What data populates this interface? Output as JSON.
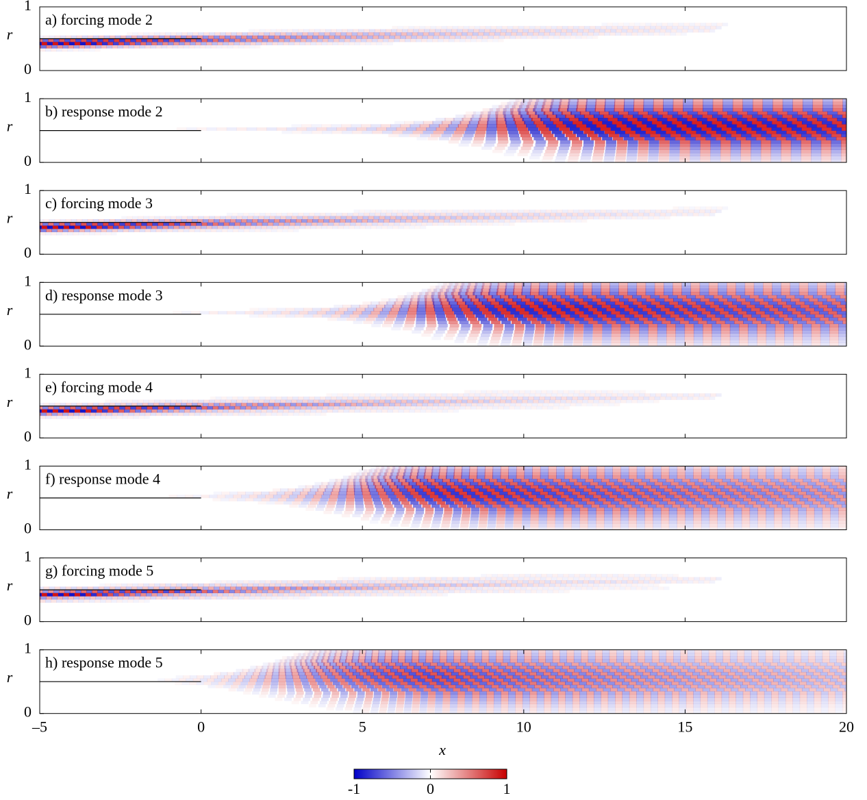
{
  "x_axis": {
    "label": "x",
    "lim": [
      -5,
      20
    ],
    "ticks": [
      {
        "value": -5,
        "label": "–5"
      },
      0,
      5,
      10,
      15,
      20
    ]
  },
  "chart_data": [
    {
      "type": "field",
      "title": "a) forcing mode 2",
      "ylabel": "r",
      "ylim": [
        0,
        1
      ],
      "yticks": [
        0,
        1
      ]
    },
    {
      "type": "field",
      "title": "b) response mode 2",
      "ylabel": "r",
      "ylim": [
        0,
        1
      ],
      "yticks": [
        0,
        1
      ]
    },
    {
      "type": "field",
      "title": "c) forcing mode 3",
      "ylabel": "r",
      "ylim": [
        0,
        1
      ],
      "yticks": [
        0,
        1
      ]
    },
    {
      "type": "field",
      "title": "d) response mode 3",
      "ylabel": "r",
      "ylim": [
        0,
        1
      ],
      "yticks": [
        0,
        1
      ]
    },
    {
      "type": "field",
      "title": "e) forcing mode 4",
      "ylabel": "r",
      "ylim": [
        0,
        1
      ],
      "yticks": [
        0,
        1
      ]
    },
    {
      "type": "field",
      "title": "f) response mode 4",
      "ylabel": "r",
      "ylim": [
        0,
        1
      ],
      "yticks": [
        0,
        1
      ]
    },
    {
      "type": "field",
      "title": "g) forcing mode 5",
      "ylabel": "r",
      "ylim": [
        0,
        1
      ],
      "yticks": [
        0,
        1
      ]
    },
    {
      "type": "field",
      "title": "h) response mode 5",
      "ylabel": "r",
      "ylim": [
        0,
        1
      ],
      "yticks": [
        0,
        1
      ]
    }
  ],
  "colorbar": {
    "lim": [
      -1,
      1
    ],
    "ticks": [
      -1,
      0,
      1
    ]
  }
}
